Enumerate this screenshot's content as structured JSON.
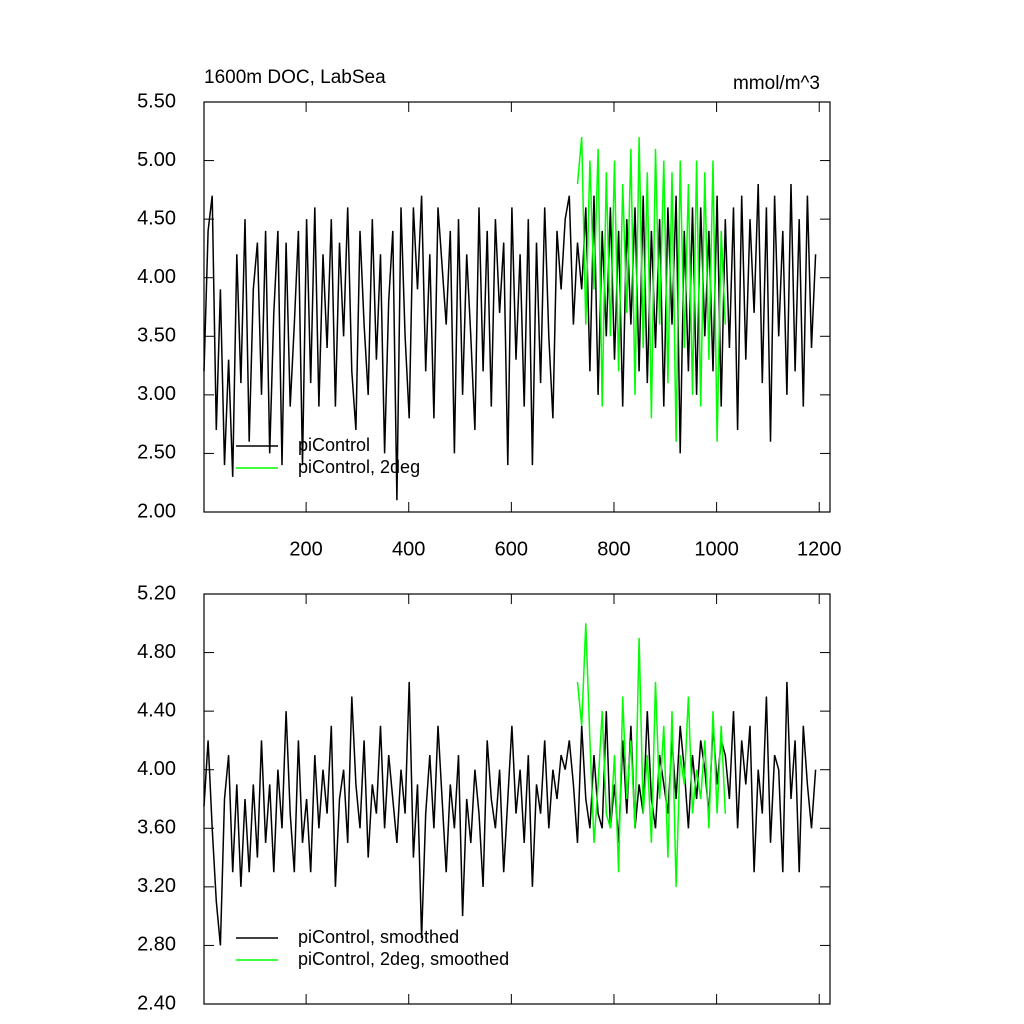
{
  "chart_data": [
    {
      "type": "line",
      "title": "1600m DOC, LabSea",
      "units": "mmol/m^3",
      "x": [
        1,
        9,
        17,
        25,
        33,
        41,
        49,
        57,
        65,
        73,
        81,
        89,
        97,
        105,
        113,
        121,
        129,
        137,
        145,
        153,
        161,
        169,
        177,
        185,
        193,
        201,
        209,
        217,
        225,
        233,
        241,
        249,
        257,
        265,
        273,
        281,
        289,
        297,
        305,
        313,
        321,
        329,
        337,
        345,
        353,
        361,
        369,
        377,
        385,
        393,
        401,
        409,
        417,
        425,
        433,
        441,
        449,
        457,
        465,
        473,
        481,
        489,
        497,
        505,
        513,
        521,
        529,
        537,
        545,
        553,
        561,
        569,
        577,
        585,
        593,
        601,
        609,
        617,
        625,
        633,
        641,
        649,
        657,
        665,
        673,
        681,
        689,
        697,
        705,
        713,
        721,
        729,
        737,
        745,
        753,
        761,
        769,
        777,
        785,
        793,
        801,
        809,
        817,
        825,
        833,
        841,
        849,
        857,
        865,
        873,
        881,
        889,
        897,
        905,
        913,
        921,
        929,
        937,
        945,
        953,
        961,
        969,
        977,
        985,
        993,
        1001,
        1009,
        1017,
        1025,
        1033,
        1041,
        1049,
        1057,
        1065,
        1073,
        1081,
        1089,
        1097,
        1105,
        1113,
        1121,
        1129,
        1137,
        1145,
        1153,
        1161,
        1169,
        1177,
        1185,
        1193
      ],
      "series": [
        {
          "name": "piControl",
          "color": "#000000",
          "values": [
            3.2,
            4.4,
            4.7,
            2.7,
            3.9,
            2.4,
            3.3,
            2.3,
            4.2,
            3.1,
            4.5,
            2.6,
            3.9,
            4.3,
            3.0,
            4.4,
            2.5,
            3.7,
            4.4,
            2.4,
            4.3,
            2.9,
            3.6,
            4.4,
            2.4,
            4.5,
            3.1,
            4.6,
            2.9,
            4.2,
            3.4,
            4.5,
            2.9,
            4.3,
            3.5,
            4.6,
            3.2,
            2.7,
            4.4,
            3.6,
            3.0,
            4.5,
            3.3,
            4.2,
            2.5,
            3.8,
            4.4,
            2.1,
            4.6,
            3.5,
            2.8,
            4.6,
            3.9,
            4.7,
            3.2,
            4.2,
            2.8,
            4.6,
            4.1,
            3.6,
            4.4,
            2.5,
            4.5,
            3.0,
            4.2,
            3.5,
            2.7,
            4.6,
            3.2,
            4.4,
            2.9,
            4.5,
            3.7,
            4.3,
            2.4,
            4.6,
            3.3,
            4.2,
            2.9,
            4.5,
            2.4,
            4.3,
            3.1,
            4.6,
            3.5,
            2.8,
            4.4,
            3.9,
            4.5,
            4.7,
            3.6,
            4.3,
            3.9,
            4.6,
            3.2,
            4.7,
            3.0,
            4.4,
            3.5,
            4.6,
            3.3,
            4.4,
            2.9,
            4.5,
            3.6,
            4.6,
            3.2,
            4.7,
            3.1,
            4.4,
            3.4,
            4.5,
            2.9,
            4.6,
            3.6,
            4.7,
            2.5,
            4.4,
            3.2,
            4.6,
            3.0,
            4.6,
            3.5,
            4.4,
            3.2,
            4.7,
            2.9,
            4.5,
            3.4,
            4.6,
            2.7,
            4.7,
            3.3,
            4.5,
            3.7,
            4.8,
            3.1,
            4.6,
            2.6,
            4.7,
            3.5,
            4.4,
            3.0,
            4.8,
            3.2,
            4.5,
            2.9,
            4.7,
            3.4,
            4.2
          ]
        },
        {
          "name": "piControl, 2deg",
          "color": "#00ff00",
          "values": [
            null,
            null,
            null,
            null,
            null,
            null,
            null,
            null,
            null,
            null,
            null,
            null,
            null,
            null,
            null,
            null,
            null,
            null,
            null,
            null,
            null,
            null,
            null,
            null,
            null,
            null,
            null,
            null,
            null,
            null,
            null,
            null,
            null,
            null,
            null,
            null,
            null,
            null,
            null,
            null,
            null,
            null,
            null,
            null,
            null,
            null,
            null,
            null,
            null,
            null,
            null,
            null,
            null,
            null,
            null,
            null,
            null,
            null,
            null,
            null,
            null,
            null,
            null,
            null,
            null,
            null,
            null,
            null,
            null,
            null,
            null,
            null,
            null,
            null,
            null,
            null,
            null,
            null,
            null,
            null,
            null,
            null,
            null,
            null,
            null,
            null,
            null,
            null,
            null,
            null,
            null,
            4.8,
            5.2,
            3.6,
            5.0,
            3.9,
            5.1,
            2.9,
            4.9,
            3.5,
            5.0,
            3.2,
            4.8,
            3.7,
            5.1,
            3.0,
            5.2,
            3.4,
            4.9,
            2.8,
            5.1,
            3.6,
            5.0,
            3.1,
            4.9,
            2.6,
            5.0,
            3.4,
            4.8,
            3.0,
            5.0,
            2.9,
            4.9,
            3.3,
            5.0,
            2.6,
            4.4,
            3.6,
            null,
            null,
            null,
            null,
            null,
            null,
            null,
            null,
            null,
            null,
            null,
            null,
            null,
            null,
            null,
            null,
            null,
            null,
            null,
            null,
            null,
            null
          ]
        }
      ],
      "xlim": [
        1,
        1221
      ],
      "xticks": [
        200,
        400,
        600,
        800,
        1000,
        1200
      ],
      "show_xtick_labels": true,
      "ylim": [
        2,
        5.5
      ],
      "yticks": [
        {
          "value": 2,
          "label": "2.00"
        },
        {
          "value": 2.5,
          "label": "2.50"
        },
        {
          "value": 3,
          "label": "3.00"
        },
        {
          "value": 3.5,
          "label": "3.50"
        },
        {
          "value": 4,
          "label": "4.00"
        },
        {
          "value": 4.5,
          "label": "4.50"
        },
        {
          "value": 5,
          "label": "5.00"
        },
        {
          "value": 5.5,
          "label": "5.50"
        }
      ],
      "legend": "lower-left"
    },
    {
      "type": "line",
      "x": [
        1,
        9,
        17,
        25,
        33,
        41,
        49,
        57,
        65,
        73,
        81,
        89,
        97,
        105,
        113,
        121,
        129,
        137,
        145,
        153,
        161,
        169,
        177,
        185,
        193,
        201,
        209,
        217,
        225,
        233,
        241,
        249,
        257,
        265,
        273,
        281,
        289,
        297,
        305,
        313,
        321,
        329,
        337,
        345,
        353,
        361,
        369,
        377,
        385,
        393,
        401,
        409,
        417,
        425,
        433,
        441,
        449,
        457,
        465,
        473,
        481,
        489,
        497,
        505,
        513,
        521,
        529,
        537,
        545,
        553,
        561,
        569,
        577,
        585,
        593,
        601,
        609,
        617,
        625,
        633,
        641,
        649,
        657,
        665,
        673,
        681,
        689,
        697,
        705,
        713,
        721,
        729,
        737,
        745,
        753,
        761,
        769,
        777,
        785,
        793,
        801,
        809,
        817,
        825,
        833,
        841,
        849,
        857,
        865,
        873,
        881,
        889,
        897,
        905,
        913,
        921,
        929,
        937,
        945,
        953,
        961,
        969,
        977,
        985,
        993,
        1001,
        1009,
        1017,
        1025,
        1033,
        1041,
        1049,
        1057,
        1065,
        1073,
        1081,
        1089,
        1097,
        1105,
        1113,
        1121,
        1129,
        1137,
        1145,
        1153,
        1161,
        1169,
        1177,
        1185,
        1193
      ],
      "series": [
        {
          "name": "piControl, smoothed",
          "color": "#000000",
          "values": [
            3.75,
            4.2,
            3.6,
            3.1,
            2.8,
            3.8,
            4.1,
            3.3,
            3.9,
            3.2,
            3.8,
            3.3,
            3.9,
            3.4,
            4.2,
            3.5,
            3.9,
            3.3,
            4.0,
            3.6,
            4.4,
            3.7,
            3.3,
            4.2,
            3.5,
            3.8,
            3.3,
            4.1,
            3.6,
            4.0,
            3.7,
            4.3,
            3.2,
            3.8,
            4.0,
            3.5,
            4.5,
            3.9,
            3.6,
            4.2,
            3.4,
            3.9,
            3.7,
            4.3,
            3.6,
            4.1,
            3.8,
            3.5,
            4.0,
            3.7,
            4.6,
            3.4,
            3.9,
            2.85,
            3.7,
            4.1,
            3.6,
            4.3,
            3.8,
            3.3,
            3.9,
            3.6,
            4.1,
            3.0,
            3.8,
            3.5,
            4.0,
            3.7,
            3.2,
            4.2,
            3.8,
            3.6,
            4.0,
            3.3,
            3.8,
            4.3,
            3.7,
            4.0,
            3.5,
            4.1,
            3.2,
            3.9,
            3.7,
            4.2,
            3.6,
            4.0,
            3.8,
            4.1,
            4.0,
            4.2,
            3.9,
            3.5,
            4.3,
            3.8,
            3.6,
            4.1,
            3.7,
            3.6,
            4.4,
            3.6,
            3.9,
            3.5,
            4.2,
            3.7,
            4.3,
            3.6,
            3.9,
            3.7,
            4.4,
            3.8,
            3.6,
            4.1,
            3.9,
            3.7,
            4.2,
            3.8,
            4.3,
            4.0,
            3.6,
            4.1,
            3.8,
            4.2,
            4.0,
            3.7,
            4.3,
            3.9,
            4.2,
            4.1,
            3.8,
            4.4,
            3.6,
            4.2,
            3.9,
            4.3,
            3.3,
            4.0,
            3.7,
            4.5,
            3.5,
            4.1,
            4.0,
            3.3,
            4.6,
            3.8,
            4.2,
            3.3,
            4.3,
            3.9,
            3.6,
            4.0
          ]
        },
        {
          "name": "piControl, 2deg, smoothed",
          "color": "#00ff00",
          "values": [
            null,
            null,
            null,
            null,
            null,
            null,
            null,
            null,
            null,
            null,
            null,
            null,
            null,
            null,
            null,
            null,
            null,
            null,
            null,
            null,
            null,
            null,
            null,
            null,
            null,
            null,
            null,
            null,
            null,
            null,
            null,
            null,
            null,
            null,
            null,
            null,
            null,
            null,
            null,
            null,
            null,
            null,
            null,
            null,
            null,
            null,
            null,
            null,
            null,
            null,
            null,
            null,
            null,
            null,
            null,
            null,
            null,
            null,
            null,
            null,
            null,
            null,
            null,
            null,
            null,
            null,
            null,
            null,
            null,
            null,
            null,
            null,
            null,
            null,
            null,
            null,
            null,
            null,
            null,
            null,
            null,
            null,
            null,
            null,
            null,
            null,
            null,
            null,
            null,
            null,
            null,
            4.6,
            4.3,
            5.0,
            4.2,
            3.5,
            3.9,
            4.4,
            3.7,
            3.6,
            4.1,
            3.3,
            4.5,
            3.8,
            4.2,
            3.6,
            4.9,
            3.7,
            4.1,
            3.5,
            4.6,
            3.8,
            4.3,
            3.4,
            4.4,
            3.2,
            4.1,
            3.9,
            4.5,
            3.7,
            4.0,
            3.8,
            4.2,
            3.6,
            4.4,
            3.7,
            4.3,
            3.7,
            null,
            null,
            null,
            null,
            null,
            null,
            null,
            null,
            null,
            null,
            null,
            null,
            null,
            null,
            null,
            null,
            null,
            null,
            null,
            null,
            null,
            null
          ]
        }
      ],
      "xlim": [
        1,
        1221
      ],
      "xticks": [
        200,
        400,
        600,
        800,
        1000,
        1200
      ],
      "show_xtick_labels": false,
      "ylim": [
        2.4,
        5.2
      ],
      "yticks": [
        {
          "value": 2.4,
          "label": "2.40"
        },
        {
          "value": 2.8,
          "label": "2.80"
        },
        {
          "value": 3.2,
          "label": "3.20"
        },
        {
          "value": 3.6,
          "label": "3.60"
        },
        {
          "value": 4,
          "label": "4.00"
        },
        {
          "value": 4.4,
          "label": "4.40"
        },
        {
          "value": 4.8,
          "label": "4.80"
        },
        {
          "value": 5.2,
          "label": "5.20"
        }
      ],
      "legend": "lower-left"
    }
  ]
}
